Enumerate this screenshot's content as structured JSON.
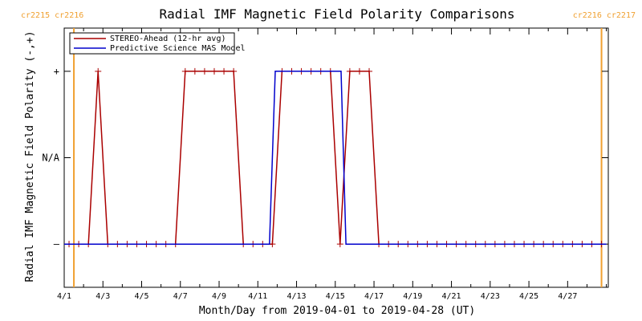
{
  "chart_data": {
    "type": "line",
    "title": "Radial IMF Magnetic Field Polarity Comparisons",
    "xlabel": "Month/Day from 2019-04-01 to 2019-04-28 (UT)",
    "ylabel": "Radial IMF Magnetic Field Polarity (-,+)",
    "xlim": [
      0,
      28.1
    ],
    "ylim": [
      -1.5,
      1.5
    ],
    "x_ticks": [
      {
        "x": 0,
        "label": "4/1"
      },
      {
        "x": 2,
        "label": "4/3"
      },
      {
        "x": 4,
        "label": "4/5"
      },
      {
        "x": 6,
        "label": "4/7"
      },
      {
        "x": 8,
        "label": "4/9"
      },
      {
        "x": 10,
        "label": "4/11"
      },
      {
        "x": 12,
        "label": "4/13"
      },
      {
        "x": 14,
        "label": "4/15"
      },
      {
        "x": 16,
        "label": "4/17"
      },
      {
        "x": 18,
        "label": "4/19"
      },
      {
        "x": 20,
        "label": "4/21"
      },
      {
        "x": 22,
        "label": "4/23"
      },
      {
        "x": 24,
        "label": "4/25"
      },
      {
        "x": 26,
        "label": "4/27"
      }
    ],
    "y_ticks": [
      {
        "y": 1,
        "label": "+"
      },
      {
        "y": 0,
        "label": "N/A"
      },
      {
        "y": -1,
        "label": "–"
      }
    ],
    "carrington_labels": [
      {
        "x": 0.5,
        "label": "cr2215 cr2216",
        "side": "left"
      },
      {
        "x": 27.5,
        "label": "cr2216 cr2217",
        "side": "right"
      }
    ],
    "series": [
      {
        "name": "STEREO-Ahead (12-hr avg)",
        "color": "#aa0000",
        "marker": "plus",
        "x": [
          0.25,
          0.75,
          1.25,
          1.75,
          2.25,
          2.75,
          3.25,
          3.75,
          4.25,
          4.75,
          5.25,
          5.75,
          6.25,
          6.75,
          7.25,
          7.75,
          8.25,
          8.75,
          9.25,
          9.75,
          10.25,
          10.75,
          11.25,
          11.75,
          12.25,
          12.75,
          13.25,
          13.75,
          14.25,
          14.75,
          15.25,
          15.75,
          16.25,
          16.75,
          17.25,
          17.75,
          18.25,
          18.75,
          19.25,
          19.75,
          20.25,
          20.75,
          21.25,
          21.75,
          22.25,
          22.75,
          23.25,
          23.75,
          24.25,
          24.75,
          25.25,
          25.75,
          26.25,
          26.75,
          27.25,
          27.75
        ],
        "y": [
          -1,
          -1,
          -1,
          1,
          -1,
          -1,
          -1,
          -1,
          -1,
          -1,
          -1,
          -1,
          1,
          1,
          1,
          1,
          1,
          1,
          -1,
          -1,
          -1,
          -1,
          1,
          1,
          1,
          1,
          1,
          1,
          -1,
          1,
          1,
          1,
          -1,
          -1,
          -1,
          -1,
          -1,
          -1,
          -1,
          -1,
          -1,
          -1,
          -1,
          -1,
          -1,
          -1,
          -1,
          -1,
          -1,
          -1,
          -1,
          -1,
          -1,
          -1,
          -1,
          -1
        ]
      },
      {
        "name": "Predictive Science MAS Model",
        "color": "#0000cc",
        "marker": "none",
        "x": [
          0.0,
          10.6,
          10.9,
          14.3,
          14.55,
          28.0
        ],
        "y": [
          -1,
          -1,
          1,
          1,
          -1,
          -1
        ]
      }
    ],
    "vertical_markers": [
      {
        "x": 0.5,
        "color": "#f0a030"
      },
      {
        "x": 27.75,
        "color": "#f0a030"
      }
    ],
    "legend_position": "top-left",
    "grid": false
  }
}
